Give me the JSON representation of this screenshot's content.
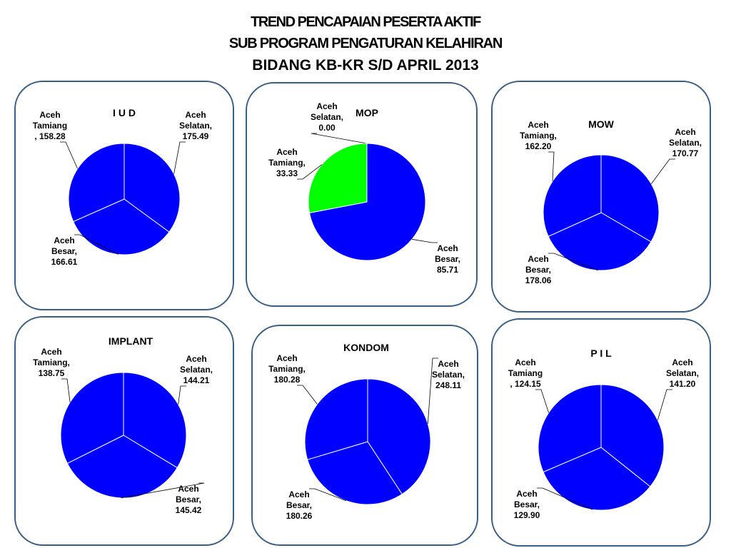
{
  "header": {
    "line1": "TREND PENCAPAIAN  PESERTA  AKTIF",
    "line2": "SUB   PROGRAM  PENGATURAN   KELAHIRAN",
    "line3": "BIDANG KB-KR  S/D  APRIL 2013"
  },
  "chart_data": [
    {
      "type": "pie",
      "title": "I U D",
      "series": [
        {
          "label_lines": [
            "Aceh",
            "Selatan,",
            "175.49"
          ],
          "category": "Aceh Selatan",
          "value": 175.49,
          "color": "#0000ff"
        },
        {
          "label_lines": [
            "Aceh",
            "Besar,",
            "166.61"
          ],
          "category": "Aceh Besar",
          "value": 166.61,
          "color": "#0000ff"
        },
        {
          "label_lines": [
            "Aceh",
            "Tamiang",
            ", 158.28"
          ],
          "category": "Aceh Tamiang",
          "value": 158.28,
          "color": "#0000ff"
        }
      ]
    },
    {
      "type": "pie",
      "title": "MOP",
      "series": [
        {
          "label_lines": [
            "Aceh",
            "Selatan,",
            "0.00"
          ],
          "category": "Aceh Selatan",
          "value": 0.0,
          "color": "#0000ff"
        },
        {
          "label_lines": [
            "Aceh",
            "Besar,",
            "85.71"
          ],
          "category": "Aceh Besar",
          "value": 85.71,
          "color": "#0000ff"
        },
        {
          "label_lines": [
            "Aceh",
            "Tamiang,",
            "33.33"
          ],
          "category": "Aceh Tamiang",
          "value": 33.33,
          "color": "#00ff00"
        }
      ]
    },
    {
      "type": "pie",
      "title": "MOW",
      "series": [
        {
          "label_lines": [
            "Aceh",
            "Selatan,",
            "170.77"
          ],
          "category": "Aceh Selatan",
          "value": 170.77,
          "color": "#0000ff"
        },
        {
          "label_lines": [
            "Aceh",
            "Besar,",
            "178.06"
          ],
          "category": "Aceh Besar",
          "value": 178.06,
          "color": "#0000ff"
        },
        {
          "label_lines": [
            "Aceh",
            "Tamiang,",
            "162.20"
          ],
          "category": "Aceh Tamiang",
          "value": 162.2,
          "color": "#0000ff"
        }
      ]
    },
    {
      "type": "pie",
      "title": "IMPLANT",
      "series": [
        {
          "label_lines": [
            "Aceh",
            "Selatan,",
            "144.21"
          ],
          "category": "Aceh Selatan",
          "value": 144.21,
          "color": "#0000ff"
        },
        {
          "label_lines": [
            "Aceh",
            "Besar,",
            "145.42"
          ],
          "category": "Aceh Besar",
          "value": 145.42,
          "color": "#0000ff"
        },
        {
          "label_lines": [
            "Aceh",
            "Tamiang,",
            "138.75"
          ],
          "category": "Aceh Tamiang",
          "value": 138.75,
          "color": "#0000ff"
        }
      ]
    },
    {
      "type": "pie",
      "title": "KONDOM",
      "series": [
        {
          "label_lines": [
            "Aceh",
            "Selatan,",
            "248.11"
          ],
          "category": "Aceh Selatan",
          "value": 248.11,
          "color": "#0000ff"
        },
        {
          "label_lines": [
            "Aceh",
            "Besar,",
            "180.26"
          ],
          "category": "Aceh Besar",
          "value": 180.26,
          "color": "#0000ff"
        },
        {
          "label_lines": [
            "Aceh",
            "Tamiang,",
            "180.28"
          ],
          "category": "Aceh Tamiang",
          "value": 180.28,
          "color": "#0000ff"
        }
      ]
    },
    {
      "type": "pie",
      "title": "P I L",
      "series": [
        {
          "label_lines": [
            "Aceh",
            "Selatan,",
            "141.20"
          ],
          "category": "Aceh Selatan",
          "value": 141.2,
          "color": "#0000ff"
        },
        {
          "label_lines": [
            "Aceh",
            "Besar,",
            "129.90"
          ],
          "category": "Aceh Besar",
          "value": 129.9,
          "color": "#0000ff"
        },
        {
          "label_lines": [
            "Aceh",
            "Tamiang",
            ", 124.15"
          ],
          "category": "Aceh Tamiang",
          "value": 124.15,
          "color": "#0000ff"
        }
      ]
    }
  ]
}
